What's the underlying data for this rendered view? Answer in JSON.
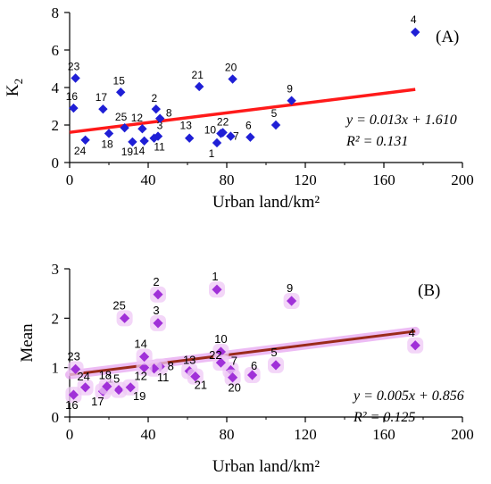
{
  "chart_data": [
    {
      "type": "scatter",
      "panel_label": "(A)",
      "xlabel": "Urban land/km²",
      "ylabel_main": "K",
      "ylabel_sub": "2",
      "xlim": [
        0,
        200
      ],
      "ylim": [
        0,
        8
      ],
      "xticks": [
        0,
        40,
        80,
        120,
        160,
        200
      ],
      "yticks": [
        0,
        2,
        4,
        6,
        8
      ],
      "marker_color": "#1f1fd6",
      "fit_color": "#ff1a1a",
      "equation": "y = 0.013x + 1.610",
      "r2": "R² = 0.131",
      "fit": {
        "slope": 0.013,
        "intercept": 1.61,
        "x_range": [
          0,
          176
        ]
      },
      "points": [
        {
          "id": "1",
          "x": 75,
          "y": 1.05
        },
        {
          "id": "2",
          "x": 44,
          "y": 2.85
        },
        {
          "id": "3",
          "x": 45,
          "y": 1.4
        },
        {
          "id": "4",
          "x": 176,
          "y": 6.95
        },
        {
          "id": "5",
          "x": 105,
          "y": 2.0
        },
        {
          "id": "6",
          "x": 92,
          "y": 1.35
        },
        {
          "id": "7",
          "x": 82,
          "y": 1.4
        },
        {
          "id": "8",
          "x": 46,
          "y": 2.35
        },
        {
          "id": "9",
          "x": 113,
          "y": 3.3
        },
        {
          "id": "10",
          "x": 77,
          "y": 1.55
        },
        {
          "id": "11",
          "x": 43,
          "y": 1.3
        },
        {
          "id": "12",
          "x": 37,
          "y": 1.8
        },
        {
          "id": "13",
          "x": 61,
          "y": 1.3
        },
        {
          "id": "14",
          "x": 38,
          "y": 1.15
        },
        {
          "id": "15",
          "x": 26,
          "y": 3.75
        },
        {
          "id": "16",
          "x": 2,
          "y": 2.9
        },
        {
          "id": "17",
          "x": 17,
          "y": 2.85
        },
        {
          "id": "18",
          "x": 20,
          "y": 1.55
        },
        {
          "id": "19",
          "x": 32,
          "y": 1.1
        },
        {
          "id": "20",
          "x": 83,
          "y": 4.45
        },
        {
          "id": "21",
          "x": 66,
          "y": 4.05
        },
        {
          "id": "22",
          "x": 78,
          "y": 1.6
        },
        {
          "id": "23",
          "x": 3,
          "y": 4.5
        },
        {
          "id": "24",
          "x": 8,
          "y": 1.2
        },
        {
          "id": "25",
          "x": 28,
          "y": 1.85
        }
      ]
    },
    {
      "type": "scatter",
      "panel_label": "(B)",
      "xlabel": "Urban land/km²",
      "ylabel_main": "Mean",
      "ylabel_sub": "",
      "xlim": [
        0,
        200
      ],
      "ylim": [
        0,
        3
      ],
      "xticks": [
        0,
        40,
        80,
        120,
        160,
        200
      ],
      "yticks": [
        0,
        1,
        2,
        3
      ],
      "marker_color": "#a030d8",
      "fit_color": "#9a2a1a",
      "equation": "y = 0.005x + 0.856",
      "r2": "R² = 0.125",
      "fit": {
        "slope": 0.005,
        "intercept": 0.856,
        "x_range": [
          0,
          176
        ]
      },
      "points": [
        {
          "id": "1",
          "x": 75,
          "y": 2.58
        },
        {
          "id": "2",
          "x": 45,
          "y": 2.48
        },
        {
          "id": "3",
          "x": 45,
          "y": 1.9
        },
        {
          "id": "4",
          "x": 176,
          "y": 1.45
        },
        {
          "id": "5",
          "x": 105,
          "y": 1.05
        },
        {
          "id": "6",
          "x": 93,
          "y": 0.85
        },
        {
          "id": "7",
          "x": 82,
          "y": 0.95
        },
        {
          "id": "8",
          "x": 46,
          "y": 1.02
        },
        {
          "id": "9",
          "x": 113,
          "y": 2.35
        },
        {
          "id": "10",
          "x": 77,
          "y": 1.32
        },
        {
          "id": "11",
          "x": 43,
          "y": 0.98
        },
        {
          "id": "12",
          "x": 38,
          "y": 1.0
        },
        {
          "id": "13",
          "x": 61,
          "y": 0.93
        },
        {
          "id": "14",
          "x": 38,
          "y": 1.22
        },
        {
          "id": "15",
          "x": 25,
          "y": 0.55
        },
        {
          "id": "16",
          "x": 2,
          "y": 0.45
        },
        {
          "id": "17",
          "x": 17,
          "y": 0.52
        },
        {
          "id": "18",
          "x": 19,
          "y": 0.62
        },
        {
          "id": "19",
          "x": 31,
          "y": 0.6
        },
        {
          "id": "20",
          "x": 83,
          "y": 0.8
        },
        {
          "id": "21",
          "x": 64,
          "y": 0.82
        },
        {
          "id": "22",
          "x": 77,
          "y": 1.1
        },
        {
          "id": "23",
          "x": 3,
          "y": 0.97
        },
        {
          "id": "24",
          "x": 8,
          "y": 0.6
        },
        {
          "id": "25",
          "x": 28,
          "y": 2.0
        }
      ]
    }
  ]
}
